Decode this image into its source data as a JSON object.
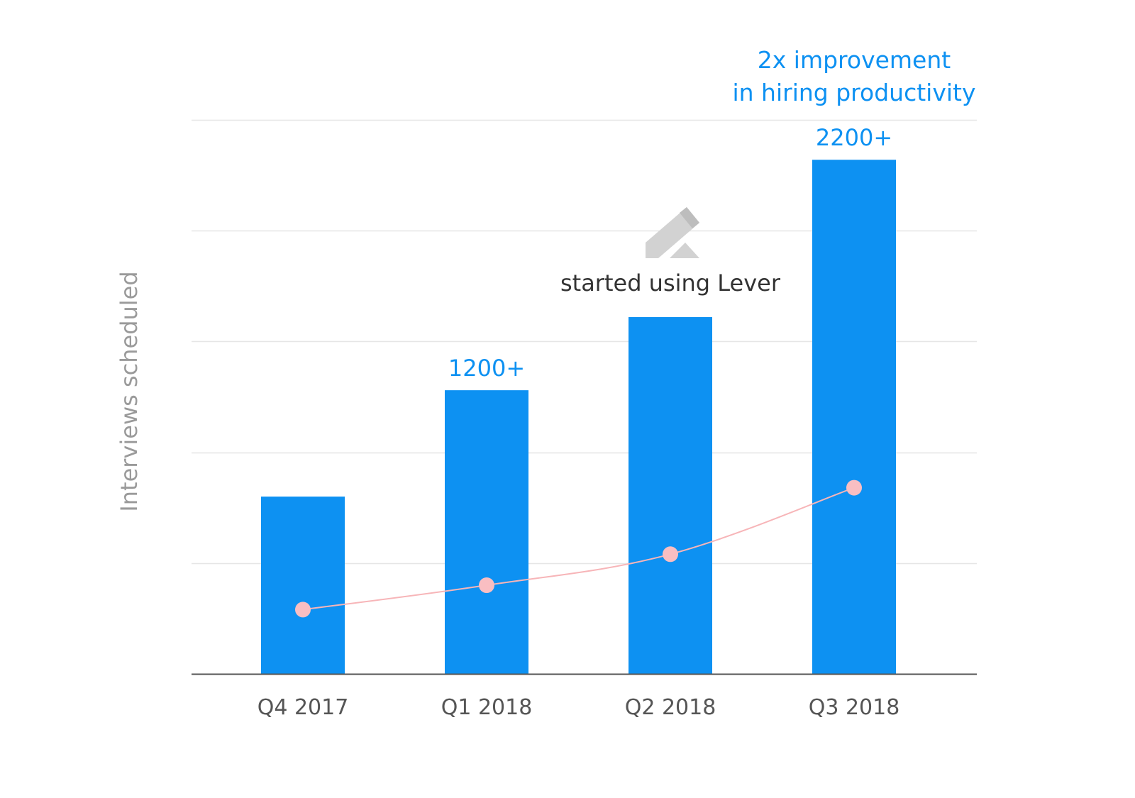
{
  "chart_data": {
    "type": "bar",
    "categories": [
      "Q4 2017",
      "Q1 2018",
      "Q2 2018",
      "Q3 2018"
    ],
    "values": [
      800,
      1280,
      1610,
      2320
    ],
    "ylabel": "Interviews scheduled",
    "xlabel": "",
    "title": "",
    "ylim": [
      0,
      2500
    ],
    "grid": true,
    "line_series": {
      "values": [
        290,
        400,
        540,
        840
      ]
    },
    "data_labels": [
      {
        "category": "Q1 2018",
        "text": "1200+"
      },
      {
        "category": "Q3 2018",
        "text": "2200+"
      }
    ],
    "headline": [
      "2x improvement",
      "in hiring productivity"
    ],
    "annotation": {
      "category": "Q2 2018",
      "text": "started using Lever",
      "icon": "lever-logo-icon"
    },
    "colors": {
      "bar": "#0d91f2",
      "line": "#f7b5b8",
      "marker": "#f9bec2",
      "label": "#0d91f2",
      "grid": "#e6e6e6",
      "axis": "#555555",
      "logo_light": "#d2d2d2",
      "logo_dark": "#bdbdbd"
    }
  }
}
